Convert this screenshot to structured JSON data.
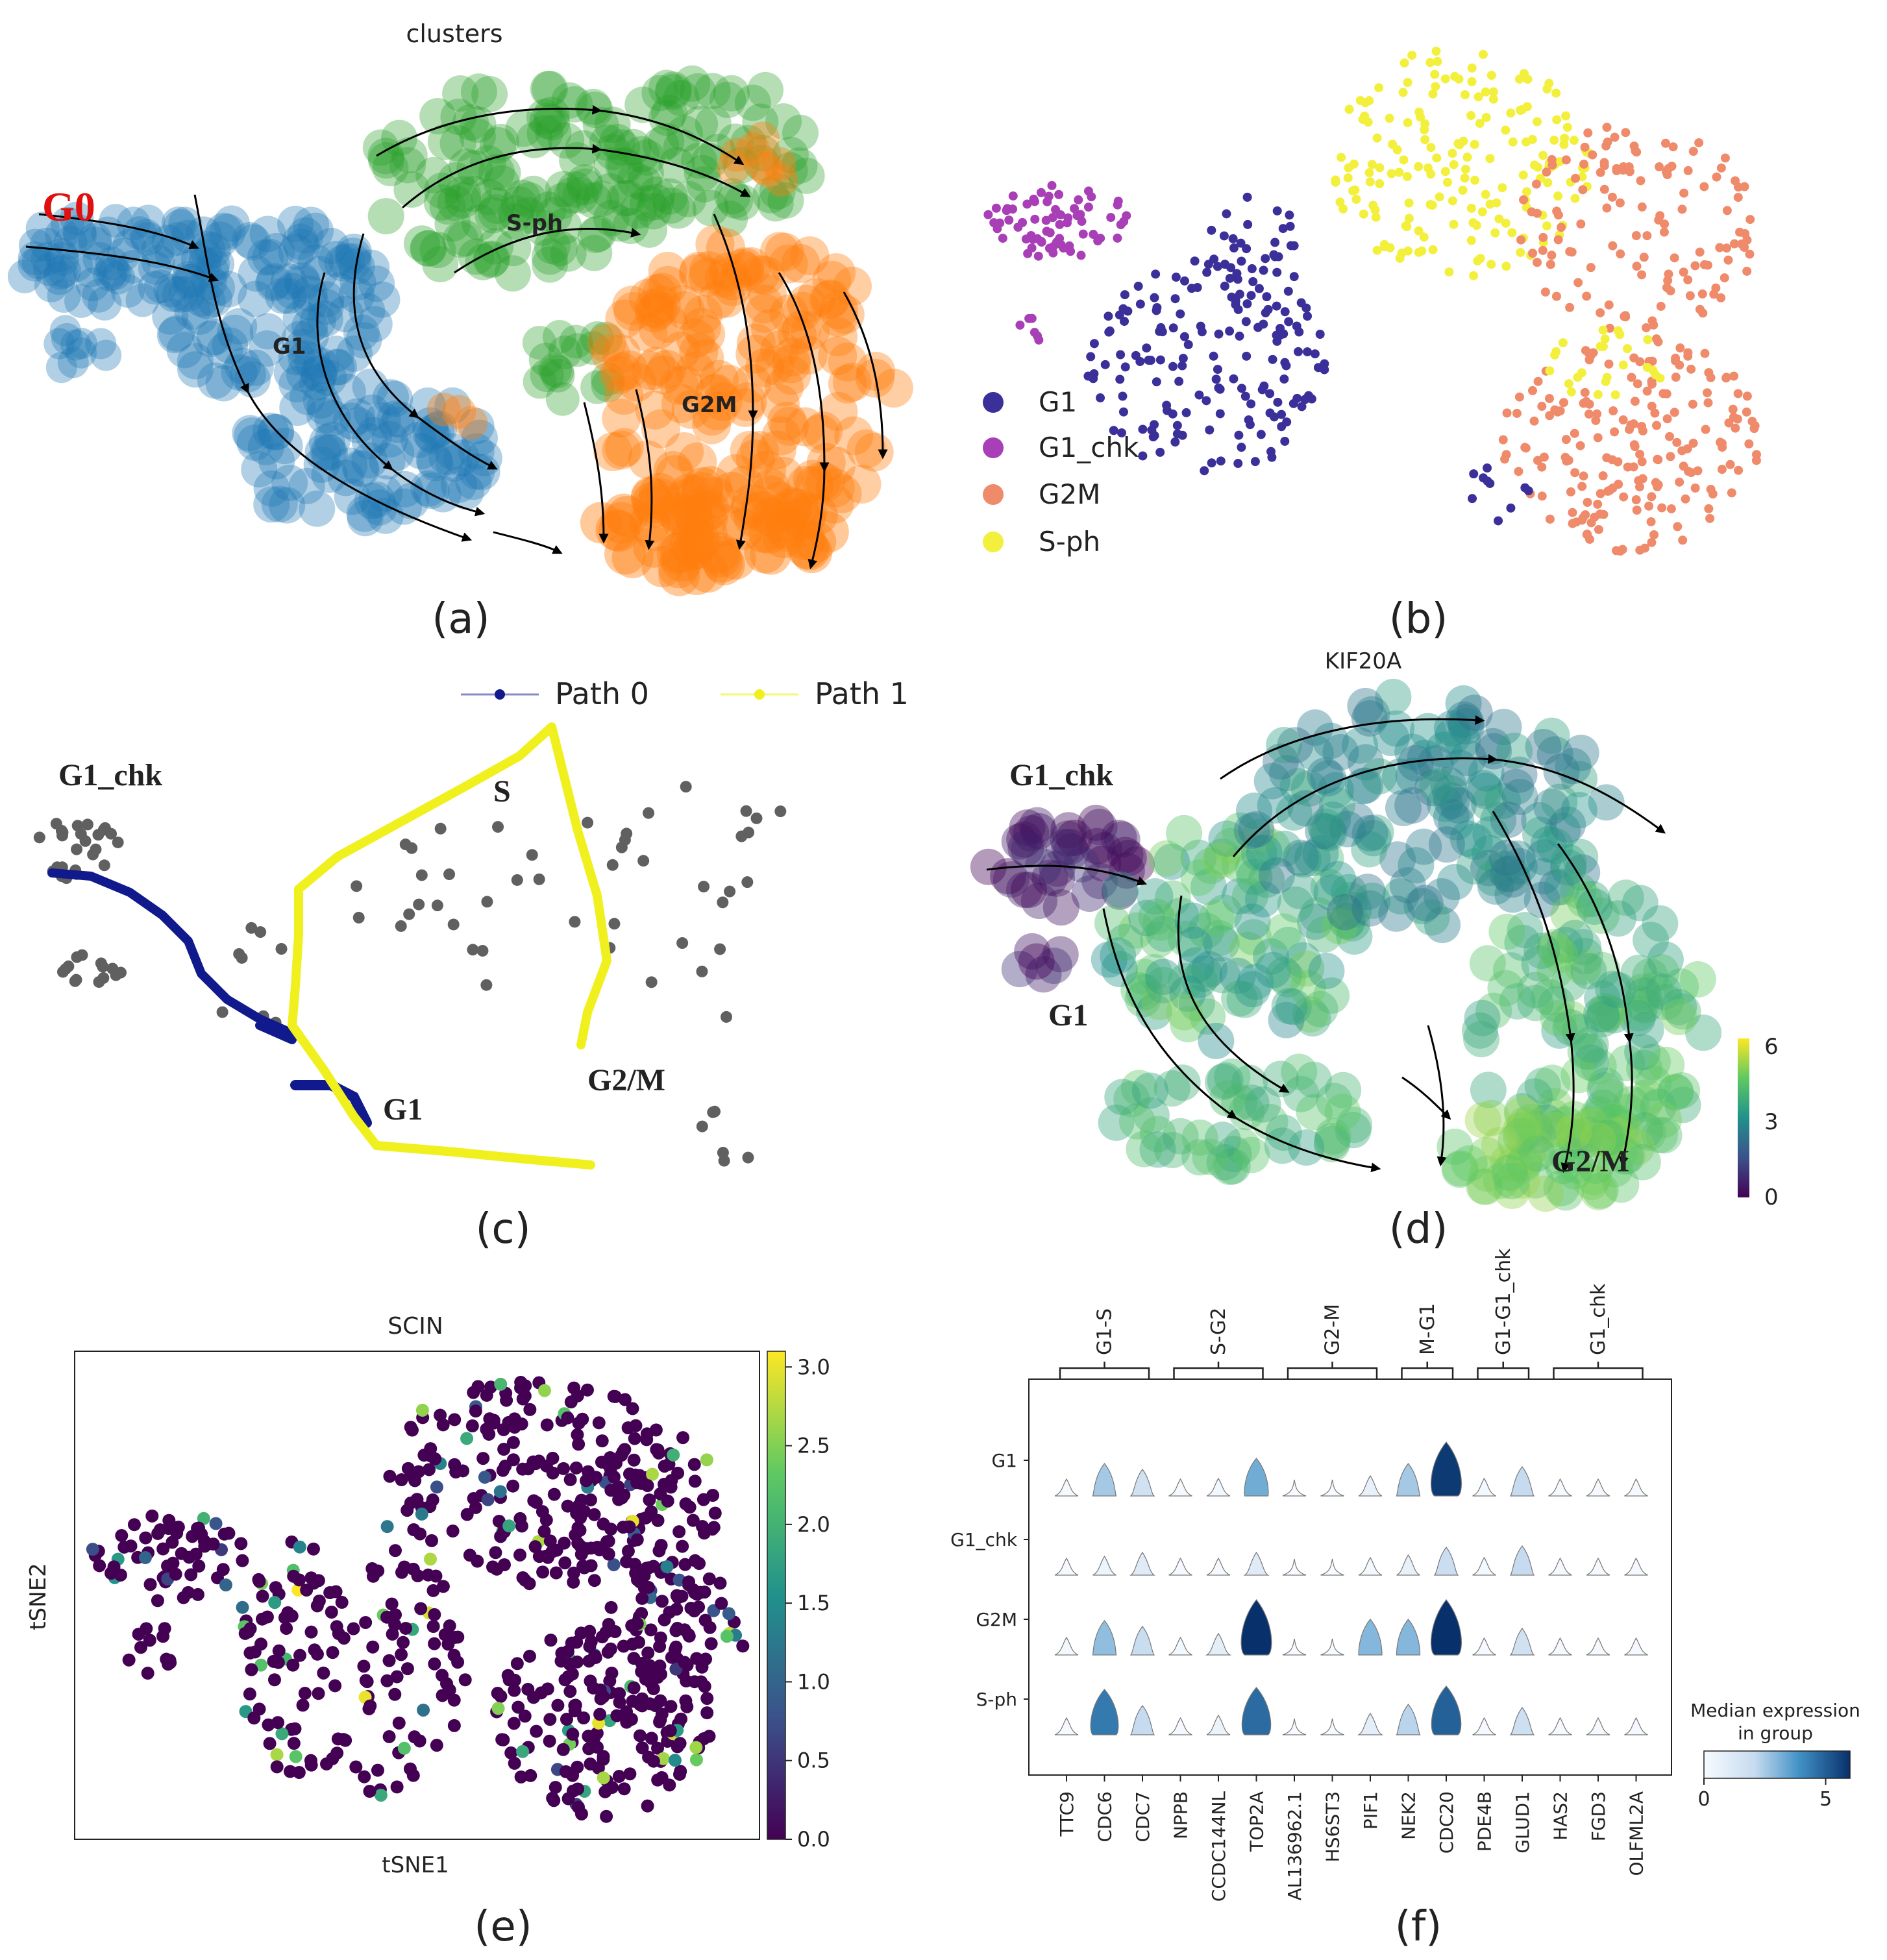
{
  "figure": {
    "panel_labels": [
      "(a)",
      "(b)",
      "(c)",
      "(d)",
      "(e)",
      "(f)"
    ]
  },
  "colors": {
    "G1": "#3b2f99",
    "G1_chk": "#a83fb6",
    "G2M": "#ef8a6a",
    "S-ph": "#f2f03c",
    "blue_cluster": "#1f77b4",
    "orange_cluster": "#ff7f0e",
    "green_cluster": "#2ca02c",
    "path0": "#111a8c",
    "path1": "#f0f01e",
    "grey_points": "#606060",
    "red_label": "#e01010"
  },
  "panel_a": {
    "title": "clusters",
    "g0_label": "G0",
    "labels": [
      "G1",
      "S-ph",
      "G2M"
    ]
  },
  "panel_b": {
    "legend": [
      "G1",
      "G1_chk",
      "G2M",
      "S-ph"
    ]
  },
  "panel_c": {
    "legend": [
      "Path 0",
      "Path 1"
    ],
    "labels": [
      "G1_chk",
      "S",
      "G1",
      "G2/M"
    ]
  },
  "panel_d": {
    "title": "KIF20A",
    "labels": [
      "G1_chk",
      "G1",
      "G2/M"
    ],
    "colorbar_ticks": [
      "6",
      "3",
      "0"
    ]
  },
  "chart_data": [
    {
      "type": "scatter",
      "panel": "e",
      "title": "SCIN",
      "xlabel": "tSNE1",
      "ylabel": "tSNE2",
      "colorbar": {
        "min": 0.0,
        "max": 3.1,
        "ticks": [
          "0.0",
          "0.5",
          "1.0",
          "1.5",
          "2.0",
          "2.5",
          "3.0"
        ]
      }
    },
    {
      "type": "violin",
      "panel": "f",
      "groups": [
        "G1",
        "G1_chk",
        "G2M",
        "S-ph"
      ],
      "genes": [
        "TTC9",
        "CDC6",
        "CDC7",
        "NPPB",
        "CCDC144NL",
        "TOP2A",
        "AL136962.1",
        "HS6ST3",
        "PIF1",
        "NEK2",
        "CDC20",
        "PDE4B",
        "GLUD1",
        "HAS2",
        "FGD3",
        "OLFML2A"
      ],
      "gene_sets": [
        {
          "label": "G1-S",
          "start": 0,
          "end": 2
        },
        {
          "label": "S-G2",
          "start": 3,
          "end": 5
        },
        {
          "label": "G2-M",
          "start": 6,
          "end": 8
        },
        {
          "label": "M-G1",
          "start": 9,
          "end": 10
        },
        {
          "label": "G1-G1_chk",
          "start": 11,
          "end": 12
        },
        {
          "label": "G1_chk",
          "start": 13,
          "end": 15
        }
      ],
      "median_expression": [
        [
          0.1,
          2.5,
          1.6,
          0.1,
          0.2,
          3.3,
          0.0,
          0.0,
          0.6,
          2.5,
          5.8,
          0.2,
          2.0,
          0.1,
          0.1,
          0.1
        ],
        [
          0.1,
          0.4,
          1.0,
          0.1,
          0.1,
          1.0,
          0.0,
          0.0,
          0.2,
          0.6,
          1.8,
          0.2,
          2.0,
          0.1,
          0.1,
          0.1
        ],
        [
          0.2,
          2.8,
          1.9,
          0.2,
          0.8,
          6.0,
          0.0,
          0.0,
          3.0,
          3.0,
          6.0,
          0.1,
          1.6,
          0.1,
          0.1,
          0.1
        ],
        [
          0.1,
          4.5,
          2.0,
          0.1,
          0.5,
          4.8,
          0.0,
          0.0,
          0.8,
          2.2,
          5.0,
          0.1,
          1.7,
          0.1,
          0.1,
          0.1
        ]
      ],
      "colorbar": {
        "label": "Median expression in group",
        "min": 0,
        "max": 6,
        "ticks": [
          "0",
          "5"
        ]
      }
    }
  ]
}
